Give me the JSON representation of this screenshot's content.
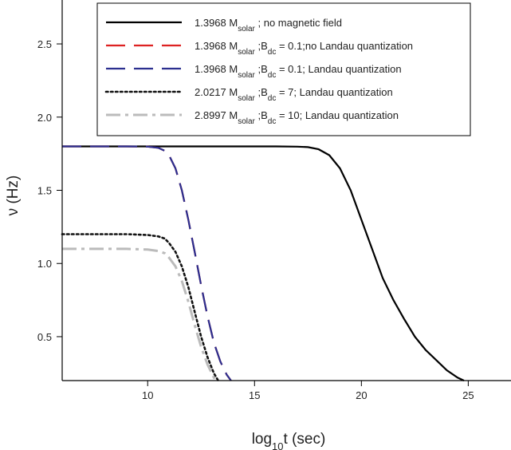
{
  "chart_data": {
    "type": "line",
    "xlabel": {
      "base": "log",
      "sub": "10",
      "rest": "t (sec)"
    },
    "ylabel": "ν (Hz)",
    "xlim": [
      6,
      27
    ],
    "ylim": [
      0.2,
      2.8
    ],
    "xticks": [
      10,
      15,
      20,
      25
    ],
    "yticks": [
      0.5,
      1.0,
      1.5,
      2.0,
      2.5
    ],
    "xtick_labels": [
      "10",
      "15",
      "20",
      "25"
    ],
    "ytick_labels": [
      "0.5",
      "1.0",
      "1.5",
      "2.0",
      "2.5"
    ],
    "grid": false,
    "legend_position": "top",
    "series": [
      {
        "legend": {
          "mass": "1.3968 M",
          "sub": "solar",
          "rest": " ; no magnetic field"
        },
        "color": "#000000",
        "dash": "solid",
        "x": [
          6,
          10,
          12,
          14,
          16,
          17,
          17.5,
          18,
          18.5,
          19,
          19.5,
          20,
          20.5,
          21,
          21.5,
          22,
          22.5,
          23,
          23.5,
          24,
          24.5,
          24.8
        ],
        "y": [
          1.8,
          1.8,
          1.8,
          1.8,
          1.8,
          1.798,
          1.795,
          1.78,
          1.74,
          1.65,
          1.5,
          1.3,
          1.1,
          0.9,
          0.75,
          0.62,
          0.5,
          0.41,
          0.34,
          0.27,
          0.22,
          0.2
        ]
      },
      {
        "legend": {
          "mass": "1.3968 M",
          "sub": "solar",
          "rest": " ;B",
          "sub2": "dc",
          "rest2": " = 0.1;no Landau quantization"
        },
        "color": "#dd2222",
        "dash": "long",
        "x": [
          6,
          9,
          10,
          10.5,
          10.8,
          11,
          11.3,
          11.6,
          11.9,
          12.2,
          12.5,
          12.8,
          13.1,
          13.4,
          13.7,
          13.9
        ],
        "y": [
          1.8,
          1.8,
          1.798,
          1.79,
          1.77,
          1.74,
          1.65,
          1.5,
          1.3,
          1.08,
          0.85,
          0.64,
          0.46,
          0.33,
          0.24,
          0.2
        ]
      },
      {
        "legend": {
          "mass": "1.3968 M",
          "sub": "solar",
          "rest": " ;B",
          "sub2": "dc",
          "rest2": " = 0.1; Landau quantization"
        },
        "color": "#2b2f8f",
        "dash": "long",
        "x": [
          6,
          9,
          10,
          10.5,
          10.8,
          11,
          11.3,
          11.6,
          11.9,
          12.2,
          12.5,
          12.8,
          13.1,
          13.4,
          13.7,
          13.9
        ],
        "y": [
          1.8,
          1.8,
          1.798,
          1.79,
          1.77,
          1.74,
          1.65,
          1.5,
          1.3,
          1.08,
          0.85,
          0.64,
          0.46,
          0.33,
          0.24,
          0.2
        ]
      },
      {
        "legend": {
          "mass": "2.0217 M",
          "sub": "solar",
          "rest": " ;B",
          "sub2": "dc",
          "rest2": " = 7; Landau quantization"
        },
        "color": "#111111",
        "dash": "dot",
        "x": [
          6,
          9,
          10,
          10.5,
          10.8,
          11,
          11.3,
          11.6,
          11.9,
          12.2,
          12.5,
          12.8,
          13.1,
          13.3
        ],
        "y": [
          1.2,
          1.2,
          1.195,
          1.185,
          1.17,
          1.14,
          1.08,
          0.98,
          0.84,
          0.67,
          0.5,
          0.36,
          0.25,
          0.2
        ]
      },
      {
        "legend": {
          "mass": "2.8997 M",
          "sub": "solar",
          "rest": " ;B",
          "sub2": "dc",
          "rest2": " = 10; Landau quantization"
        },
        "color": "#bbbbbb",
        "dash": "dashdot",
        "x": [
          6,
          9,
          10,
          10.5,
          10.8,
          11,
          11.3,
          11.6,
          11.9,
          12.2,
          12.5,
          12.8,
          13.1,
          13.2
        ],
        "y": [
          1.1,
          1.1,
          1.095,
          1.085,
          1.07,
          1.04,
          0.98,
          0.88,
          0.74,
          0.58,
          0.43,
          0.31,
          0.22,
          0.2
        ]
      }
    ]
  }
}
